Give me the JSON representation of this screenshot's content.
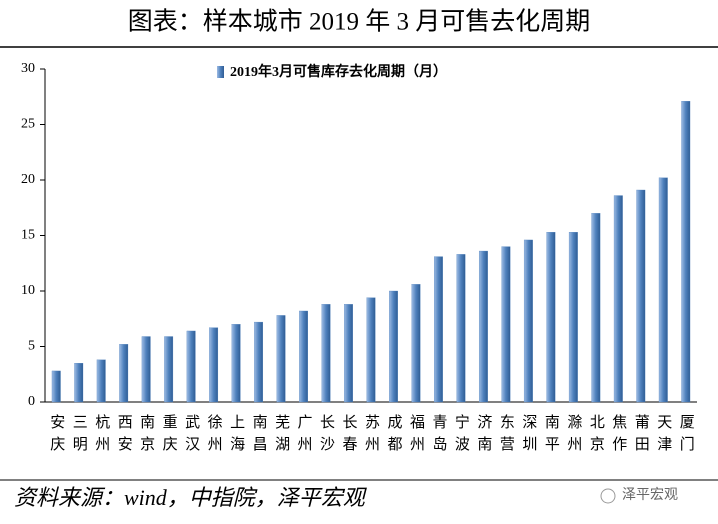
{
  "chart_data": {
    "type": "bar",
    "title": "图表：样本城市 2019 年 3 月可售去化周期",
    "legend": "2019年3月可售库存去化周期（月）",
    "categories": [
      "安庆",
      "三明",
      "杭州",
      "西安",
      "南京",
      "重庆",
      "武汉",
      "徐州",
      "上海",
      "南昌",
      "芜湖",
      "广州",
      "长沙",
      "长春",
      "苏州",
      "成都",
      "福州",
      "青岛",
      "宁波",
      "济南",
      "东营",
      "深圳",
      "南平",
      "滁州",
      "北京",
      "焦作",
      "莆田",
      "天津",
      "厦门"
    ],
    "values": [
      2.8,
      3.5,
      3.8,
      5.2,
      5.9,
      5.9,
      6.4,
      6.7,
      7.0,
      7.2,
      7.8,
      8.2,
      8.8,
      8.8,
      9.4,
      10.0,
      10.6,
      13.1,
      13.3,
      13.6,
      14.0,
      14.6,
      15.3,
      15.3,
      17.0,
      18.6,
      19.1,
      20.2,
      27.1
    ],
    "color": "#4f81bd",
    "ylim": [
      0,
      30
    ],
    "yticks": [
      0,
      5,
      10,
      15,
      20,
      25,
      30
    ],
    "grid": false,
    "source": "资料来源：wind，中指院，泽平宏观",
    "watermark": "泽平宏观"
  }
}
